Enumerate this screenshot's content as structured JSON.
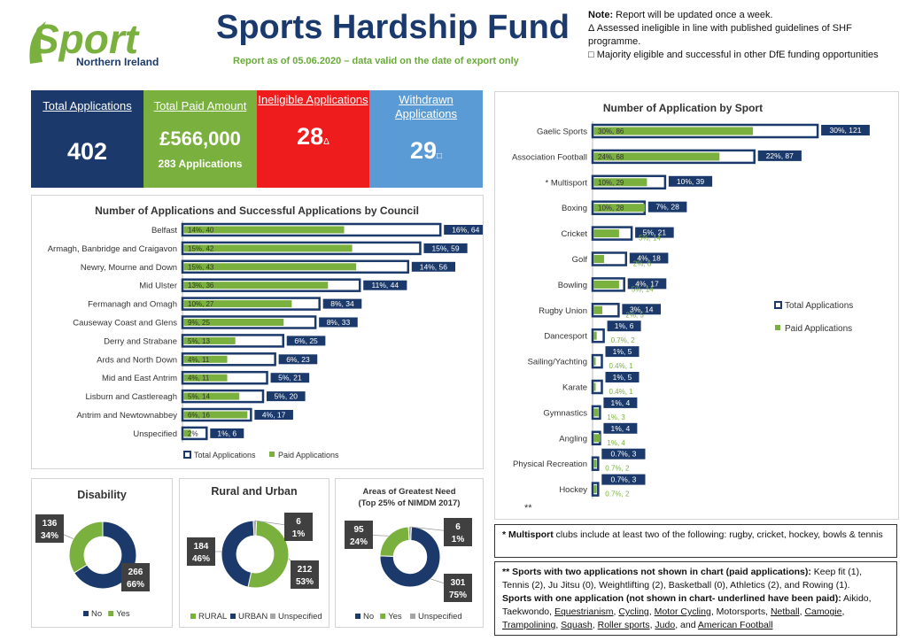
{
  "header": {
    "logo_text": "Sport",
    "logo_sub": "Northern Ireland",
    "title": "Sports Hardship Fund",
    "subtitle": "Report as of 05.06.2020 – data valid on the date of export only"
  },
  "notes": {
    "line1_bold": "Note:",
    "line1": " Report will be updated once a week.",
    "line2": "Δ Assessed ineligible in line with published guidelines of SHF programme.",
    "line3": "□ Majority eligible and successful in other DfE funding opportunities"
  },
  "kpis": {
    "total_apps_label": "Total Applications",
    "total_apps_value": "402",
    "paid_label": "Total Paid Amount",
    "paid_value": "£566,000",
    "paid_sub": "283 Applications",
    "ineligible_label": "Ineligible Applications",
    "ineligible_value": "28",
    "ineligible_mark": "Δ",
    "withdrawn_label": "Withdrawn Applications",
    "withdrawn_value": "29",
    "withdrawn_mark": "□"
  },
  "colors": {
    "navy": "#1b3a6b",
    "green": "#7ab03e",
    "red": "#ee1c1c",
    "blue": "#5b9bd5",
    "grey": "#a6a6a6"
  },
  "chart_data": [
    {
      "type": "bar",
      "title": "Number of Applications and Successful Applications by Council",
      "categories": [
        "Belfast",
        "Armagh, Banbridge and Craigavon",
        "Newry, Mourne and Down",
        "Mid Ulster",
        "Fermanagh and Omagh",
        "Causeway Coast and Glens",
        "Derry and Strabane",
        "Ards and North Down",
        "Mid and East Antrim",
        "Lisburn and Castlereagh",
        "Antrim and Newtownabbey",
        "Unspecified"
      ],
      "series": [
        {
          "name": "Total Applications",
          "values": [
            64,
            59,
            56,
            44,
            34,
            33,
            25,
            23,
            21,
            20,
            17,
            6
          ],
          "labels": [
            "16%, 64",
            "15%, 59",
            "14%, 56",
            "11%, 44",
            "8%, 34",
            "8%, 33",
            "6%, 25",
            "6%, 23",
            "5%, 21",
            "5%, 20",
            "4%, 17",
            "1%, 6"
          ]
        },
        {
          "name": "Paid Applications",
          "values": [
            40,
            42,
            43,
            36,
            27,
            25,
            13,
            11,
            11,
            14,
            16,
            2
          ],
          "labels": [
            "14%, 40",
            "15%, 42",
            "15%, 43",
            "13%, 36",
            "10%, 27",
            "9%, 25",
            "5%, 13",
            "4%, 11",
            "4%, 11",
            "5%, 14",
            "6%, 16",
            "2%"
          ]
        }
      ],
      "legend": "bottom"
    },
    {
      "type": "bar",
      "title": "Number of Application by Sport",
      "categories": [
        "Gaelic Sports",
        "Association Football",
        "*  Multisport",
        "Boxing",
        "Cricket",
        "Golf",
        "Bowling",
        "Rugby Union",
        "Dancesport",
        "Sailing/Yachting",
        "Karate",
        "Gymnastics",
        "Angling",
        "Physical Recreation",
        "Hockey"
      ],
      "series": [
        {
          "name": "Total Applications",
          "values": [
            121,
            87,
            39,
            28,
            21,
            18,
            17,
            14,
            6,
            5,
            5,
            4,
            4,
            3,
            3
          ],
          "labels": [
            "30%, 121",
            "22%, 87",
            "10%, 39",
            "7%, 28",
            "5%, 21",
            "4%, 18",
            "4%, 17",
            "3%, 14",
            "1%, 6",
            "1%, 5",
            "1%, 5",
            "1%, 4",
            "1%, 4",
            "0.7%, 3",
            "0.7%, 3"
          ]
        },
        {
          "name": "Paid Applications",
          "values": [
            86,
            68,
            29,
            28,
            14,
            6,
            14,
            5,
            2,
            1,
            1,
            3,
            4,
            2,
            2
          ],
          "labels": [
            "30%, 86",
            "24%, 68",
            "10%, 29",
            "10%, 28",
            "5%, 14",
            "2%, 6",
            "5%, 14",
            "2%, 5",
            "0.7%, 2",
            "0.4%, 1",
            "0.4%, 1",
            "1%, 3",
            "1%, 4",
            "0.7%, 2",
            "0.7%, 2"
          ]
        }
      ],
      "legend": "right",
      "footnote": "**"
    },
    {
      "type": "pie",
      "title": "Disability",
      "series": [
        {
          "name": "No",
          "value": 266,
          "label": "266\n66%"
        },
        {
          "name": "Yes",
          "value": 136,
          "label": "136\n34%"
        }
      ],
      "legend": "bottom"
    },
    {
      "type": "pie",
      "title": "Rural and Urban",
      "series": [
        {
          "name": "RURAL",
          "value": 212,
          "label": "212\n53%"
        },
        {
          "name": "URBAN",
          "value": 184,
          "label": "184\n46%"
        },
        {
          "name": "Unspecified",
          "value": 6,
          "label": "6\n1%"
        }
      ],
      "legend": "bottom"
    },
    {
      "type": "pie",
      "title": "Areas of Greatest Need\n(Top 25% of NIMDM 2017)",
      "series": [
        {
          "name": "No",
          "value": 301,
          "label": "301\n75%"
        },
        {
          "name": "Yes",
          "value": 95,
          "label": "95\n24%"
        },
        {
          "name": "Unspecified",
          "value": 6,
          "label": "6\n1%"
        }
      ],
      "legend": "bottom"
    }
  ],
  "footnotes": {
    "multisport_bold": "* Multisport",
    "multisport": " clubs include at least two of the following: rugby, cricket, hockey, bowls & tennis",
    "two_bold": "** Sports with two applications not shown in chart (paid applications):",
    "two": " Keep fit (1), Tennis (2), Ju Jitsu (0), Weightlifting (2), Basketball (0), Athletics (2), and Rowing (1).",
    "one_bold": "Sports with one application (not shown in chart- underlined have been paid):",
    "one_plain_a": " Aikido, Taekwondo, ",
    "one_u": [
      "Equestrianism",
      "Cycling",
      "Motor Cycling"
    ],
    "one_plain_b": "Motorsports",
    "one_u2": [
      "Netball",
      "Camogie",
      "Trampolining",
      "Squash",
      "Roller sports",
      "Judo"
    ],
    "one_and": "and",
    "one_last": "American Football"
  }
}
